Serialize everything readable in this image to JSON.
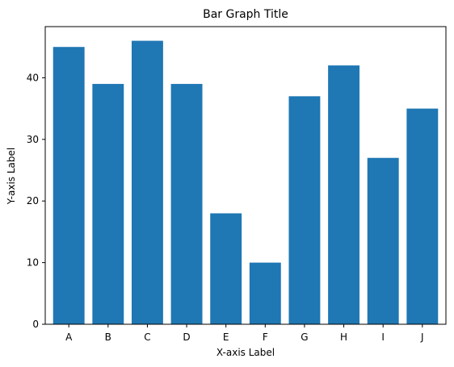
{
  "chart_data": {
    "type": "bar",
    "title": "Bar Graph Title",
    "xlabel": "X-axis Label",
    "ylabel": "Y-axis Label",
    "categories": [
      "A",
      "B",
      "C",
      "D",
      "E",
      "F",
      "G",
      "H",
      "I",
      "J"
    ],
    "values": [
      45,
      39,
      46,
      39,
      18,
      10,
      37,
      42,
      27,
      35
    ],
    "ylim": [
      0,
      48.3
    ],
    "yticks": [
      0,
      10,
      20,
      30,
      40
    ],
    "grid": false,
    "legend": "none",
    "colors": {
      "bar": "#1f77b4",
      "axis": "#000000",
      "background": "#ffffff"
    }
  }
}
